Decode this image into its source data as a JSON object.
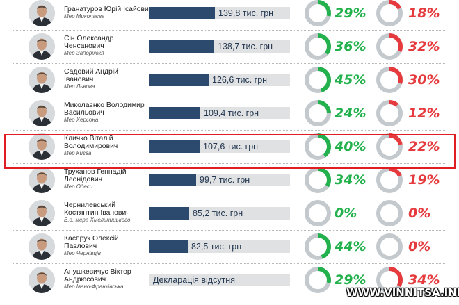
{
  "colors": {
    "income_bar": "#2c4a6e",
    "trust": "#22b14c",
    "distrust": "#e53b3e",
    "ring_track": "#c4c9ce",
    "highlight": "#e01d23"
  },
  "rows": [
    {
      "name1": "Гранатуров Юрій Ісайович",
      "name2": "",
      "role": "Мер Миколаєва",
      "income": "139,8 тис. грн",
      "income_value": 139.8,
      "trust": "29%",
      "trust_value": 29,
      "distrust": "18%",
      "distrust_value": 18
    },
    {
      "name1": "Сін Олександр",
      "name2": "Ченсанович",
      "role": "Мер Запоріжжя",
      "income": "138,7 тис. грн",
      "income_value": 138.7,
      "trust": "36%",
      "trust_value": 36,
      "distrust": "32%",
      "distrust_value": 32
    },
    {
      "name1": "Садовий Андрій",
      "name2": "Іванович",
      "role": "Мер Львова",
      "income": "126,6 тис. грн",
      "income_value": 126.6,
      "trust": "45%",
      "trust_value": 45,
      "distrust": "30%",
      "distrust_value": 30
    },
    {
      "name1": "Миколаєнко Володимир",
      "name2": "Васильович",
      "role": "Мер Херсона",
      "income": "109,4 тис. грн",
      "income_value": 109.4,
      "trust": "24%",
      "trust_value": 24,
      "distrust": "12%",
      "distrust_value": 12
    },
    {
      "name1": "Кличко Віталій",
      "name2": "Володимирович",
      "role": "Мер Києва",
      "income": "107,6 тис. грн",
      "income_value": 107.6,
      "trust": "40%",
      "trust_value": 40,
      "distrust": "22%",
      "distrust_value": 22
    },
    {
      "name1": "Труханов Геннадій",
      "name2": "Леонідович",
      "role": "Мер Одеси",
      "income": "99,7 тис. грн",
      "income_value": 99.7,
      "trust": "34%",
      "trust_value": 34,
      "distrust": "19%",
      "distrust_value": 19
    },
    {
      "name1": "Чернилевський",
      "name2": "Костянтин Іванович",
      "role": "В.о. мера Хмельницького",
      "income": "85,2 тис. грн",
      "income_value": 85.2,
      "trust": "0%",
      "trust_value": 0,
      "distrust": "0%",
      "distrust_value": 0
    },
    {
      "name1": "Каспрук Олексій",
      "name2": "Павлович",
      "role": "Мер Чернівців",
      "income": "82,5 тис. грн",
      "income_value": 82.5,
      "trust": "44%",
      "trust_value": 44,
      "distrust": "0%",
      "distrust_value": 0
    },
    {
      "name1": "Анушкевичус Віктор",
      "name2": "Андрюсович",
      "role": "Мер Івано-Франківська",
      "income": "Декларація відсутня",
      "income_value": null,
      "trust": "29%",
      "trust_value": 29,
      "distrust": "34%",
      "distrust_value": 34
    }
  ],
  "watermark": "WWW.VINNITSA.INFO"
}
